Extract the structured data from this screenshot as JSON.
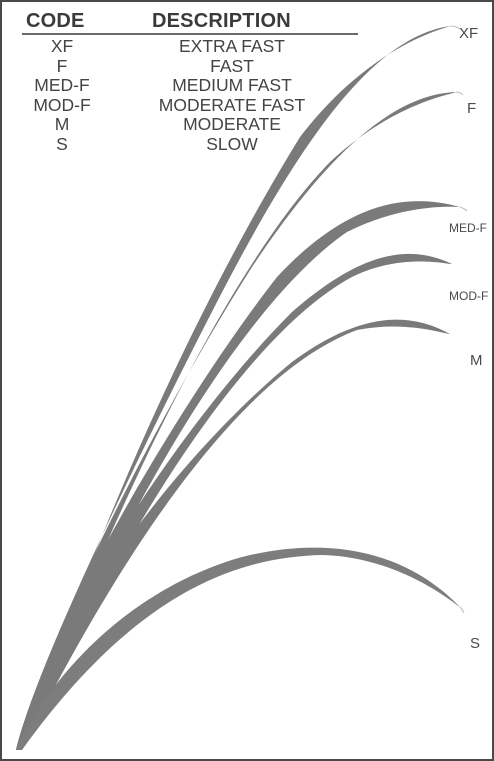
{
  "legend": {
    "code_header": "CODE",
    "description_header": "DESCRIPTION",
    "codes": [
      "XF",
      "F",
      "MED-F",
      "MOD-F",
      "M",
      "S"
    ],
    "descriptions": [
      "EXTRA FAST",
      "FAST",
      "MEDIUM FAST",
      "MODERATE FAST",
      "MODERATE",
      "SLOW"
    ]
  },
  "curve_labels": {
    "xf": "XF",
    "f": "F",
    "med_f": "MED-F",
    "mod_f": "MOD-F",
    "m": "M",
    "s": "S"
  },
  "colors": {
    "curve": "#7d7d7d",
    "border": "#4a4a4a",
    "text": "#3a3a3a"
  }
}
